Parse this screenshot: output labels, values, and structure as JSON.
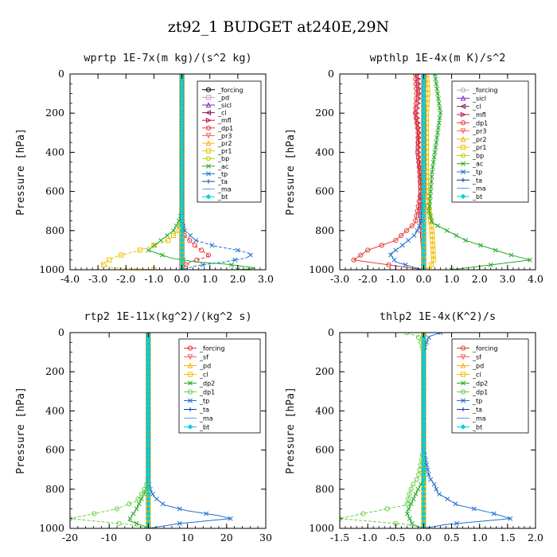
{
  "figure_title": "zt92_1  BUDGET at240E,29N",
  "chart_data": [
    {
      "type": "line",
      "title": "wprtp  1E-7x(m kg)/(s^2 kg)",
      "ylabel": "Pressure [hPa]",
      "xlim": [
        -4.0,
        3.0
      ],
      "ylim": [
        1000,
        0
      ],
      "xticks": [
        "-4.0",
        "-3.0",
        "-2.0",
        "-1.0",
        "0.0",
        "1.0",
        "2.0",
        "3.0"
      ],
      "yticks": [
        "0",
        "200",
        "400",
        "600",
        "800",
        "1000"
      ],
      "legend_position": "upper-right",
      "series": [
        {
          "name": "_forcing",
          "color": "#000000",
          "marker": "o",
          "x": [
            0,
            0
          ],
          "y": [
            0,
            1000
          ]
        },
        {
          "name": "_pd",
          "color": "#c8a2c8",
          "marker": "s",
          "x": [
            0,
            0
          ],
          "y": [
            0,
            1000
          ]
        },
        {
          "name": "_sicl",
          "color": "#7b2cbf",
          "marker": "^",
          "x": [
            0,
            0
          ],
          "y": [
            0,
            1000
          ]
        },
        {
          "name": "_cl",
          "color": "#8b1a4a",
          "marker": "<",
          "x": [
            0,
            0
          ],
          "y": [
            0,
            1000
          ]
        },
        {
          "name": "_mfl",
          "color": "#c2185b",
          "marker": ">",
          "x": [
            0,
            0
          ],
          "y": [
            0,
            1000
          ]
        },
        {
          "name": "_dp1",
          "color": "#e53935",
          "marker": "o",
          "x": [
            0,
            0,
            0.02,
            0.05,
            0.5,
            1.0,
            0.3,
            0.0,
            0.0
          ],
          "y": [
            0,
            700,
            760,
            820,
            880,
            930,
            960,
            990,
            1000
          ]
        },
        {
          "name": "_pr3",
          "color": "#ff5a5a",
          "marker": "v",
          "x": [
            0,
            0
          ],
          "y": [
            0,
            1000
          ]
        },
        {
          "name": "_pr2",
          "color": "#ffb000",
          "marker": "^",
          "x": [
            0,
            0
          ],
          "y": [
            0,
            1000
          ]
        },
        {
          "name": "_pr1",
          "color": "#f0c000",
          "marker": "s",
          "x": [
            0,
            0,
            -0.1,
            -0.5,
            -1.5,
            -2.3,
            -2.6,
            -2.9,
            -2.5,
            -1.0,
            0.0
          ],
          "y": [
            0,
            760,
            800,
            850,
            900,
            930,
            950,
            970,
            990,
            1000,
            1000
          ]
        },
        {
          "name": "_bp",
          "color": "#b8d400",
          "marker": "o",
          "x": [
            0,
            0
          ],
          "y": [
            0,
            1000
          ]
        },
        {
          "name": "_ac",
          "color": "#22aa22",
          "marker": "x",
          "x": [
            0,
            0,
            -0.1,
            -0.3,
            -1.2,
            -0.4,
            0.5,
            1.5,
            2.6,
            2.5,
            2.0
          ],
          "y": [
            0,
            700,
            750,
            800,
            900,
            940,
            960,
            970,
            990,
            995,
            1000
          ]
        },
        {
          "name": "_tp",
          "color": "#1f6fd1",
          "marker": "x",
          "x": [
            0,
            0,
            0.1,
            0.5,
            1.2,
            2.0,
            2.5,
            2.3,
            1.5,
            0.5,
            0.0
          ],
          "y": [
            0,
            750,
            800,
            850,
            880,
            900,
            920,
            940,
            960,
            980,
            1000
          ]
        },
        {
          "name": "_ta",
          "color": "#123aa0",
          "marker": "+",
          "x": [
            0,
            0
          ],
          "y": [
            0,
            1000
          ]
        },
        {
          "name": "_ma",
          "color": "#5aa0ff",
          "marker": "-",
          "x": [
            0,
            0
          ],
          "y": [
            0,
            1000
          ]
        },
        {
          "name": "_bt",
          "color": "#00d0e0",
          "marker": "d",
          "x": [
            0,
            0
          ],
          "y": [
            0,
            1000
          ]
        }
      ]
    },
    {
      "type": "line",
      "title": "wpthlp  1E-4x(m K)/s^2",
      "ylabel": "Pressure [hPa]",
      "xlim": [
        -3.0,
        4.0
      ],
      "ylim": [
        1000,
        0
      ],
      "xticks": [
        "-3.0",
        "-2.0",
        "-1.0",
        "0.0",
        "1.0",
        "2.0",
        "3.0",
        "4.0"
      ],
      "yticks": [
        "0",
        "200",
        "400",
        "600",
        "800",
        "1000"
      ],
      "legend_position": "upper-right",
      "series": [
        {
          "name": "_forcing",
          "color": "#c8a2c8",
          "marker": "o",
          "x": [
            0,
            0
          ],
          "y": [
            0,
            1000
          ]
        },
        {
          "name": "_sicl",
          "color": "#7b2cbf",
          "marker": "^",
          "x": [
            0,
            0
          ],
          "y": [
            0,
            1000
          ]
        },
        {
          "name": "_cl",
          "color": "#8b1a4a",
          "marker": "<",
          "x": [
            0,
            0
          ],
          "y": [
            0,
            1000
          ]
        },
        {
          "name": "_mfl",
          "color": "#c2185b",
          "marker": ">",
          "x": [
            -0.2,
            -0.15,
            -0.25,
            -0.15,
            -0.2,
            -0.1,
            -0.1,
            0,
            0
          ],
          "y": [
            0,
            100,
            200,
            300,
            400,
            500,
            700,
            900,
            1000
          ]
        },
        {
          "name": "_dp1",
          "color": "#e53935",
          "marker": "o",
          "x": [
            -0.3,
            -0.25,
            -0.3,
            -0.2,
            -0.2,
            -0.1,
            -0.3,
            -1.0,
            -2.0,
            -2.5,
            0.0
          ],
          "y": [
            0,
            100,
            200,
            300,
            400,
            600,
            760,
            850,
            900,
            950,
            1000
          ]
        },
        {
          "name": "_pr3",
          "color": "#ff5a5a",
          "marker": "v",
          "x": [
            0,
            0
          ],
          "y": [
            0,
            1000
          ]
        },
        {
          "name": "_pr2",
          "color": "#ffb000",
          "marker": "^",
          "x": [
            0,
            0
          ],
          "y": [
            0,
            1000
          ]
        },
        {
          "name": "_pr1",
          "color": "#f0c000",
          "marker": "s",
          "x": [
            0.1,
            0.15,
            0.1,
            0.1,
            0.1,
            0.1,
            0.2,
            0.3,
            0.35,
            0.2
          ],
          "y": [
            0,
            100,
            200,
            300,
            400,
            600,
            700,
            800,
            950,
            1000
          ]
        },
        {
          "name": "_bp",
          "color": "#b8d400",
          "marker": "o",
          "x": [
            0,
            0
          ],
          "y": [
            0,
            1000
          ]
        },
        {
          "name": "_ac",
          "color": "#22aa22",
          "marker": "x",
          "x": [
            0.4,
            0.5,
            0.6,
            0.5,
            0.4,
            0.3,
            0.2,
            0.3,
            1.5,
            3.0,
            3.8,
            1.0
          ],
          "y": [
            0,
            100,
            200,
            300,
            400,
            500,
            700,
            760,
            850,
            920,
            950,
            1000
          ]
        },
        {
          "name": "_tp",
          "color": "#1f6fd1",
          "marker": "x",
          "x": [
            0,
            0,
            0,
            -0.1,
            -0.3,
            -0.8,
            -1.2,
            -1.0,
            -0.3,
            0
          ],
          "y": [
            0,
            200,
            600,
            760,
            820,
            880,
            920,
            960,
            990,
            1000
          ]
        },
        {
          "name": "_ta",
          "color": "#123aa0",
          "marker": "+",
          "x": [
            0,
            0
          ],
          "y": [
            0,
            1000
          ]
        },
        {
          "name": "_ma",
          "color": "#5aa0ff",
          "marker": "-",
          "x": [
            0,
            0
          ],
          "y": [
            0,
            1000
          ]
        },
        {
          "name": "_bt",
          "color": "#00d0e0",
          "marker": "d",
          "x": [
            0,
            0
          ],
          "y": [
            0,
            1000
          ]
        }
      ]
    },
    {
      "type": "line",
      "title": "rtp2  1E-11x(kg^2)/(kg^2 s)",
      "ylabel": "Pressure [hPa]",
      "xlim": [
        -20,
        30
      ],
      "ylim": [
        1000,
        0
      ],
      "xticks": [
        "-20",
        "-10",
        "0",
        "10",
        "20",
        "30"
      ],
      "yticks": [
        "0",
        "200",
        "400",
        "600",
        "800",
        "1000"
      ],
      "legend_position": "upper-right",
      "series": [
        {
          "name": "_forcing",
          "color": "#e53935",
          "marker": "o",
          "x": [
            0,
            0
          ],
          "y": [
            0,
            1000
          ]
        },
        {
          "name": "_sf",
          "color": "#ff5a5a",
          "marker": "v",
          "x": [
            0,
            0
          ],
          "y": [
            0,
            1000
          ]
        },
        {
          "name": "_pd",
          "color": "#ffb000",
          "marker": "^",
          "x": [
            0,
            0
          ],
          "y": [
            0,
            1000
          ]
        },
        {
          "name": "_cl",
          "color": "#f0c000",
          "marker": "s",
          "x": [
            0,
            0
          ],
          "y": [
            0,
            1000
          ]
        },
        {
          "name": "_dp2",
          "color": "#22aa22",
          "marker": "x",
          "x": [
            0,
            0,
            -0.5,
            -3,
            -5,
            -1,
            0
          ],
          "y": [
            0,
            750,
            800,
            900,
            960,
            990,
            1000
          ]
        },
        {
          "name": "_dp1",
          "color": "#6ad04a",
          "marker": "o",
          "x": [
            0,
            0,
            -0.5,
            -1.5,
            -3,
            -8,
            -15,
            -20,
            -5,
            0
          ],
          "y": [
            0,
            740,
            780,
            820,
            860,
            900,
            930,
            950,
            980,
            1000
          ]
        },
        {
          "name": "_tp",
          "color": "#1f6fd1",
          "marker": "x",
          "x": [
            0,
            0,
            0.5,
            1.5,
            4,
            10,
            18,
            21,
            8,
            0
          ],
          "y": [
            0,
            760,
            800,
            840,
            880,
            910,
            935,
            950,
            975,
            1000
          ]
        },
        {
          "name": "_ta",
          "color": "#123aa0",
          "marker": "+",
          "x": [
            0,
            0
          ],
          "y": [
            0,
            1000
          ]
        },
        {
          "name": "_ma",
          "color": "#5aa0ff",
          "marker": "-",
          "x": [
            0,
            0
          ],
          "y": [
            0,
            1000
          ]
        },
        {
          "name": "_bt",
          "color": "#00d0e0",
          "marker": "d",
          "x": [
            0,
            0
          ],
          "y": [
            0,
            1000
          ]
        }
      ]
    },
    {
      "type": "line",
      "title": "thlp2  1E-4x(K^2)/s",
      "ylabel": "Pressure [hPa]",
      "xlim": [
        -1.5,
        2.0
      ],
      "ylim": [
        1000,
        0
      ],
      "xticks": [
        "-1.5",
        "-1.0",
        "-0.5",
        "0.0",
        "0.5",
        "1.0",
        "1.5",
        "2.0"
      ],
      "yticks": [
        "0",
        "200",
        "400",
        "600",
        "800",
        "1000"
      ],
      "legend_position": "upper-right",
      "series": [
        {
          "name": "_forcing",
          "color": "#e53935",
          "marker": "o",
          "x": [
            0,
            0
          ],
          "y": [
            0,
            1000
          ]
        },
        {
          "name": "_sf",
          "color": "#ff5a5a",
          "marker": "v",
          "x": [
            0,
            0
          ],
          "y": [
            0,
            1000
          ]
        },
        {
          "name": "_pd",
          "color": "#ffb000",
          "marker": "^",
          "x": [
            0,
            0
          ],
          "y": [
            0,
            1000
          ]
        },
        {
          "name": "_cl",
          "color": "#f0c000",
          "marker": "s",
          "x": [
            0,
            0
          ],
          "y": [
            0,
            1000
          ]
        },
        {
          "name": "_dp2",
          "color": "#22aa22",
          "marker": "x",
          "x": [
            0,
            0,
            -0.1,
            -0.3,
            -0.2,
            0
          ],
          "y": [
            0,
            750,
            800,
            920,
            980,
            1000
          ]
        },
        {
          "name": "_dp1",
          "color": "#6ad04a",
          "marker": "o",
          "x": [
            -0.3,
            -0.1,
            -0.05,
            0,
            0,
            -0.1,
            -0.2,
            -0.25,
            -0.3,
            -1.0,
            -1.5,
            -0.3,
            0
          ],
          "y": [
            0,
            20,
            50,
            100,
            600,
            740,
            780,
            820,
            880,
            920,
            950,
            980,
            1000
          ]
        },
        {
          "name": "_tp",
          "color": "#1f6fd1",
          "marker": "x",
          "x": [
            0.3,
            0.1,
            0.05,
            0,
            0,
            0.1,
            0.2,
            0.25,
            0.6,
            1.2,
            1.55,
            0.4,
            0
          ],
          "y": [
            0,
            20,
            50,
            100,
            600,
            740,
            780,
            820,
            880,
            920,
            950,
            980,
            1000
          ]
        },
        {
          "name": "_ta",
          "color": "#123aa0",
          "marker": "+",
          "x": [
            0,
            0
          ],
          "y": [
            0,
            1000
          ]
        },
        {
          "name": "_ma",
          "color": "#5aa0ff",
          "marker": "-",
          "x": [
            0,
            0
          ],
          "y": [
            0,
            1000
          ]
        },
        {
          "name": "_bt",
          "color": "#00d0e0",
          "marker": "d",
          "x": [
            0,
            0
          ],
          "y": [
            0,
            1000
          ]
        }
      ]
    }
  ]
}
